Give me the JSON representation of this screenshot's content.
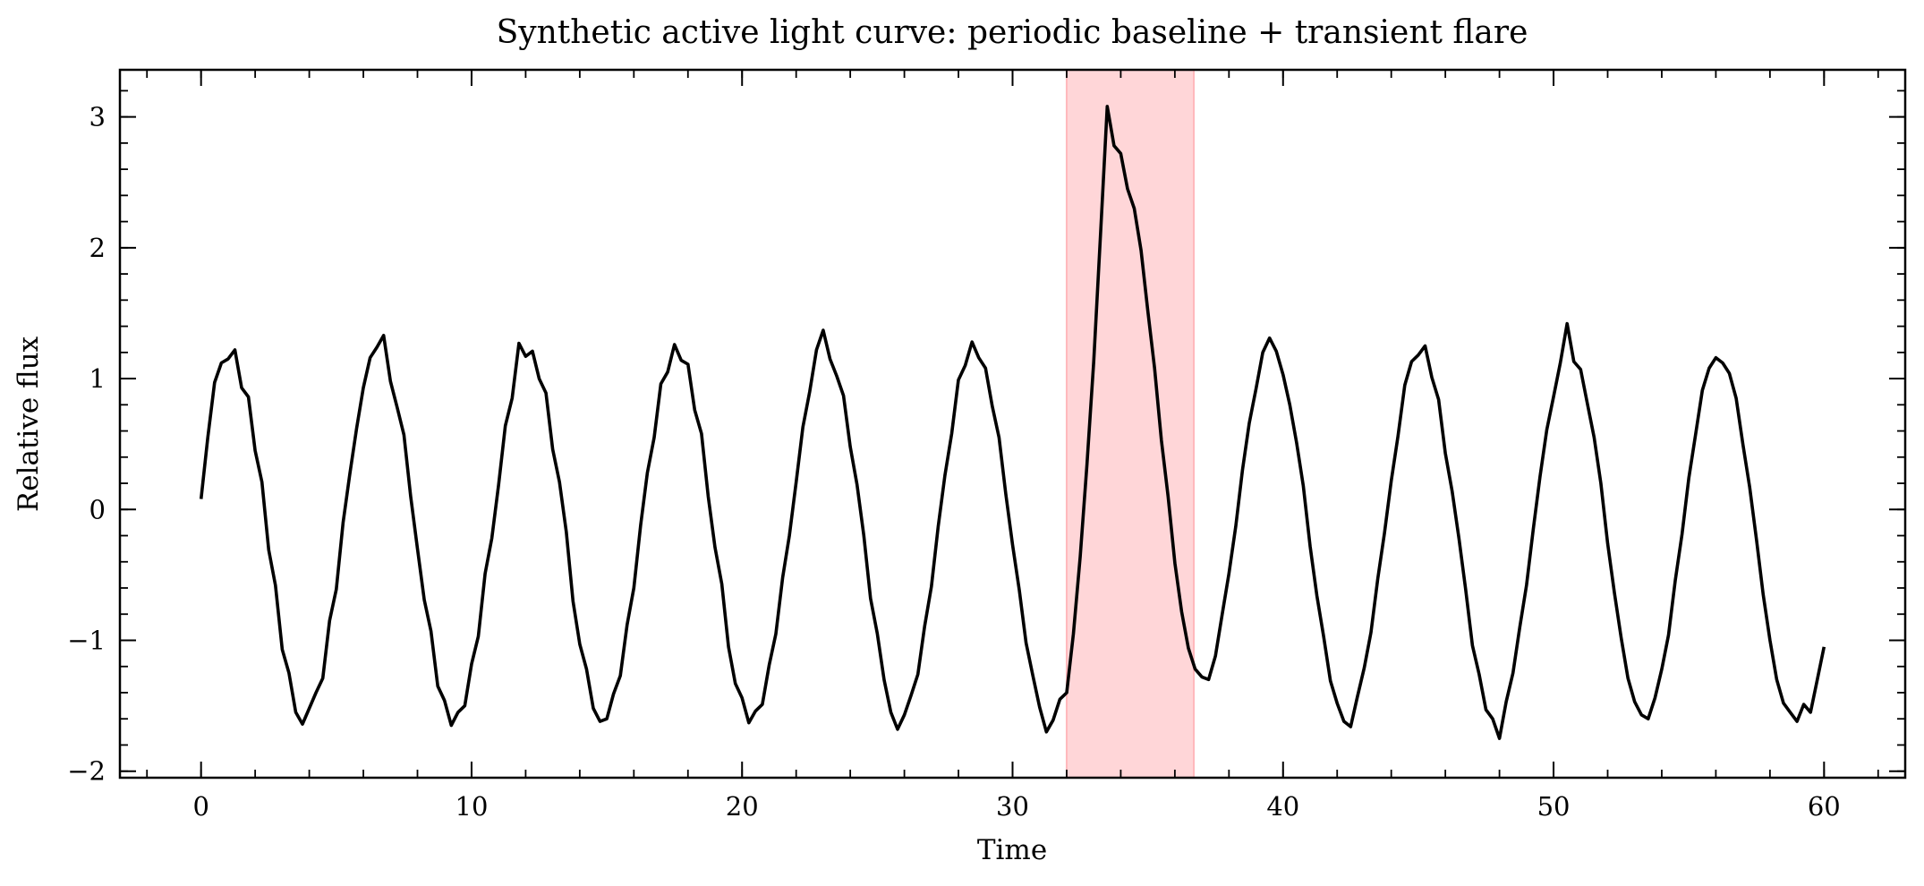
{
  "chart_data": {
    "type": "line",
    "title": "Synthetic active light curve: periodic baseline + transient flare",
    "xlabel": "Time",
    "ylabel": "Relative flux",
    "xlim": [
      -3,
      63
    ],
    "ylim": [
      -2.05,
      3.36
    ],
    "xticks": [
      0,
      10,
      20,
      30,
      40,
      50,
      60
    ],
    "yticks": [
      -2,
      -1,
      0,
      1,
      2,
      3
    ],
    "xtick_labels": [
      "0",
      "10",
      "20",
      "30",
      "40",
      "50",
      "60"
    ],
    "ytick_labels": [
      "−2",
      "−1",
      "0",
      "1",
      "2",
      "3"
    ],
    "x_minor_step": 2,
    "y_minor_step": 0.2,
    "grid": false,
    "ticks_direction": "in",
    "ticks_on_all_sides": true,
    "highlight_span": {
      "x0": 32.0,
      "x1": 36.7,
      "color": "#ffd6d8",
      "edge_color": "#ffb8bc"
    },
    "series": [
      {
        "color": "#000000",
        "x": {
          "start": 0,
          "stop": 60,
          "step": 0.25
        },
        "y": [
          0.08,
          0.55,
          0.97,
          1.12,
          1.15,
          1.22,
          0.93,
          0.86,
          0.45,
          0.21,
          -0.31,
          -0.58,
          -1.07,
          -1.25,
          -1.55,
          -1.64,
          -1.52,
          -1.4,
          -1.29,
          -0.85,
          -0.61,
          -0.1,
          0.27,
          0.62,
          0.93,
          1.16,
          1.24,
          1.33,
          0.98,
          0.78,
          0.57,
          0.1,
          -0.3,
          -0.69,
          -0.93,
          -1.35,
          -1.46,
          -1.65,
          -1.55,
          -1.5,
          -1.18,
          -0.97,
          -0.49,
          -0.22,
          0.19,
          0.64,
          0.85,
          1.27,
          1.17,
          1.21,
          1.0,
          0.89,
          0.46,
          0.21,
          -0.17,
          -0.7,
          -1.03,
          -1.22,
          -1.52,
          -1.62,
          -1.6,
          -1.41,
          -1.27,
          -0.88,
          -0.6,
          -0.12,
          0.28,
          0.55,
          0.96,
          1.05,
          1.26,
          1.14,
          1.11,
          0.76,
          0.58,
          0.1,
          -0.29,
          -0.57,
          -1.05,
          -1.33,
          -1.44,
          -1.63,
          -1.54,
          -1.49,
          -1.19,
          -0.95,
          -0.52,
          -0.2,
          0.21,
          0.63,
          0.9,
          1.22,
          1.37,
          1.15,
          1.02,
          0.87,
          0.48,
          0.19,
          -0.2,
          -0.68,
          -0.95,
          -1.3,
          -1.55,
          -1.68,
          -1.57,
          -1.42,
          -1.26,
          -0.89,
          -0.59,
          -0.13,
          0.26,
          0.58,
          0.99,
          1.1,
          1.28,
          1.16,
          1.08,
          0.79,
          0.55,
          0.12,
          -0.27,
          -0.62,
          -1.02,
          -1.27,
          -1.51,
          -1.7,
          -1.61,
          -1.45,
          -1.4,
          -0.95,
          -0.36,
          0.34,
          1.13,
          2.09,
          3.08,
          2.78,
          2.72,
          2.45,
          2.3,
          1.98,
          1.52,
          1.08,
          0.53,
          0.1,
          -0.41,
          -0.78,
          -1.06,
          -1.22,
          -1.28,
          -1.3,
          -1.12,
          -0.8,
          -0.49,
          -0.13,
          0.3,
          0.66,
          0.92,
          1.2,
          1.31,
          1.21,
          1.03,
          0.8,
          0.51,
          0.18,
          -0.28,
          -0.66,
          -0.97,
          -1.31,
          -1.48,
          -1.62,
          -1.66,
          -1.43,
          -1.21,
          -0.94,
          -0.53,
          -0.18,
          0.22,
          0.56,
          0.95,
          1.13,
          1.18,
          1.25,
          1.01,
          0.84,
          0.43,
          0.14,
          -0.22,
          -0.61,
          -1.04,
          -1.26,
          -1.53,
          -1.6,
          -1.75,
          -1.47,
          -1.25,
          -0.9,
          -0.58,
          -0.15,
          0.25,
          0.61,
          0.86,
          1.12,
          1.42,
          1.13,
          1.07,
          0.81,
          0.55,
          0.2,
          -0.26,
          -0.64,
          -0.98,
          -1.29,
          -1.47,
          -1.57,
          -1.6,
          -1.44,
          -1.22,
          -0.96,
          -0.54,
          -0.19,
          0.24,
          0.57,
          0.91,
          1.08,
          1.16,
          1.12,
          1.04,
          0.85,
          0.5,
          0.17,
          -0.23,
          -0.65,
          -1.0,
          -1.3,
          -1.48,
          -1.55,
          -1.62,
          -1.49,
          -1.55,
          -1.3,
          -1.05
        ]
      }
    ]
  }
}
